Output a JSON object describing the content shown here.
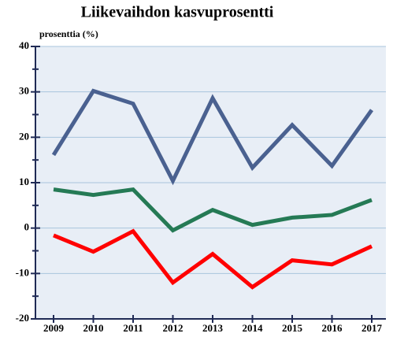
{
  "chart_data": {
    "type": "line",
    "title": "Liikevaihdon kasvuprosentti",
    "y_label": "prosenttia (%)",
    "categories": [
      "2009",
      "2010",
      "2011",
      "2012",
      "2013",
      "2014",
      "2015",
      "2016",
      "2017"
    ],
    "series": [
      {
        "color": "#4a6190",
        "values": [
          16.1,
          30.2,
          27.4,
          10.4,
          28.6,
          13.3,
          22.7,
          13.7,
          26.0
        ]
      },
      {
        "color": "#257a55",
        "values": [
          8.5,
          7.3,
          8.5,
          -0.5,
          4.0,
          0.7,
          2.3,
          2.9,
          6.2
        ]
      },
      {
        "color": "#ff0000",
        "values": [
          -1.6,
          -5.2,
          -0.7,
          -12.0,
          -5.7,
          -13.0,
          -7.1,
          -8.0,
          -4.0
        ]
      }
    ],
    "ylim": [
      -20,
      40
    ],
    "yticks": [
      -20,
      -10,
      0,
      10,
      20,
      30,
      40
    ],
    "grid": true
  }
}
